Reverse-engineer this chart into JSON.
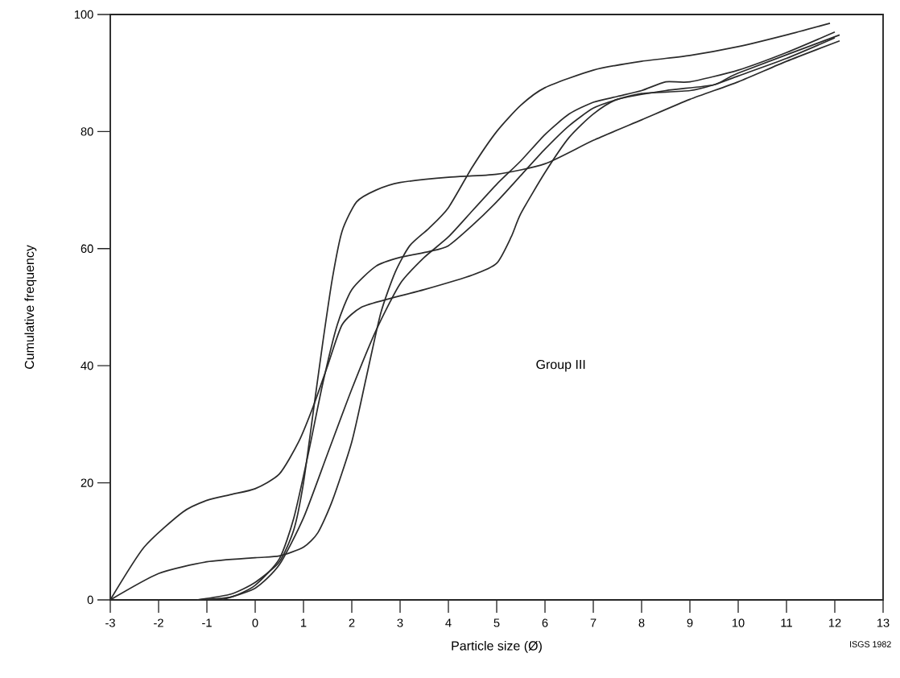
{
  "chart_data": {
    "type": "line",
    "xlabel": "Particle size (Ø)",
    "ylabel": "Cumulative frequency",
    "annotations": [
      "Group III",
      "ISGS 1982"
    ],
    "xlim": [
      -3,
      13
    ],
    "ylim": [
      0,
      100
    ],
    "xticks": [
      -3,
      -2,
      -1,
      0,
      1,
      2,
      3,
      4,
      5,
      6,
      7,
      8,
      9,
      10,
      11,
      12,
      13
    ],
    "yticks": [
      0,
      20,
      40,
      60,
      80,
      100
    ],
    "grid": false,
    "marker": "none",
    "line_style": "solid",
    "series": [
      {
        "color": "#2b2b2b",
        "x": [
          -3,
          -2.3,
          -1.5,
          -1,
          -0.5,
          0,
          0.5,
          0.9,
          1.2,
          1.5,
          1.8,
          2.2,
          2.8,
          3.5,
          4.5,
          5,
          5.3,
          5.5,
          6,
          6.5,
          7,
          7.5,
          8.5,
          9.5,
          10,
          12.1
        ],
        "values": [
          0,
          9,
          15,
          17,
          18,
          19,
          21.5,
          27,
          33,
          40,
          47,
          50,
          51.5,
          53,
          55.5,
          57.5,
          62,
          66,
          73,
          79,
          83,
          85.5,
          87,
          88,
          90,
          96.5
        ]
      },
      {
        "color": "#2b2b2b",
        "x": [
          -3,
          -2,
          -1,
          0,
          0.5,
          1,
          1.3,
          1.6,
          2,
          2.3,
          2.6,
          2.9,
          3.2,
          3.6,
          4,
          4.5,
          5,
          5.5,
          6,
          7,
          8,
          9,
          10,
          11,
          11.9
        ],
        "values": [
          0,
          4.5,
          6.5,
          7.2,
          7.5,
          9,
          11.5,
          17,
          27,
          38,
          49,
          56,
          60.5,
          63.5,
          67,
          74,
          80,
          84.5,
          87.5,
          90.5,
          92,
          93,
          94.5,
          96.5,
          98.5
        ]
      },
      {
        "color": "#2b2b2b",
        "x": [
          -1.2,
          -0.5,
          0,
          0.5,
          0.8,
          1,
          1.2,
          1.4,
          1.6,
          1.8,
          2.1,
          2.5,
          3,
          4,
          5,
          6,
          7,
          8,
          9,
          10,
          11,
          12.1
        ],
        "values": [
          0,
          1,
          3,
          6.5,
          12,
          20,
          32,
          44,
          55,
          63,
          68,
          70,
          71.3,
          72.2,
          72.7,
          74.5,
          78.5,
          82,
          85.5,
          88.5,
          92,
          95.5
        ]
      },
      {
        "color": "#2b2b2b",
        "x": [
          -1.2,
          -0.5,
          0,
          0.5,
          0.8,
          1.1,
          1.4,
          1.7,
          2,
          2.5,
          3,
          3.6,
          4,
          4.5,
          5,
          5.5,
          6,
          6.5,
          7,
          7.5,
          8,
          9,
          9.5,
          10,
          11,
          12
        ],
        "values": [
          0,
          0.5,
          2.5,
          7,
          14,
          25,
          37,
          47,
          53,
          57,
          58.5,
          59.5,
          60.5,
          64,
          68,
          72.5,
          77,
          81,
          84,
          85.5,
          86.5,
          87,
          88,
          89.5,
          92.5,
          96
        ]
      },
      {
        "color": "#2b2b2b",
        "x": [
          -0.7,
          0,
          0.5,
          1,
          1.5,
          2,
          2.5,
          3,
          3.5,
          4,
          4.5,
          5,
          5.5,
          6,
          6.5,
          7,
          7.5,
          8,
          8.5,
          9,
          10,
          11,
          12
        ],
        "values": [
          0,
          2,
          6,
          14,
          25,
          36,
          46,
          54,
          58.5,
          62,
          66.5,
          71,
          75,
          79.5,
          83,
          85,
          86,
          87,
          88.5,
          88.5,
          90.5,
          93.5,
          97
        ]
      }
    ]
  }
}
